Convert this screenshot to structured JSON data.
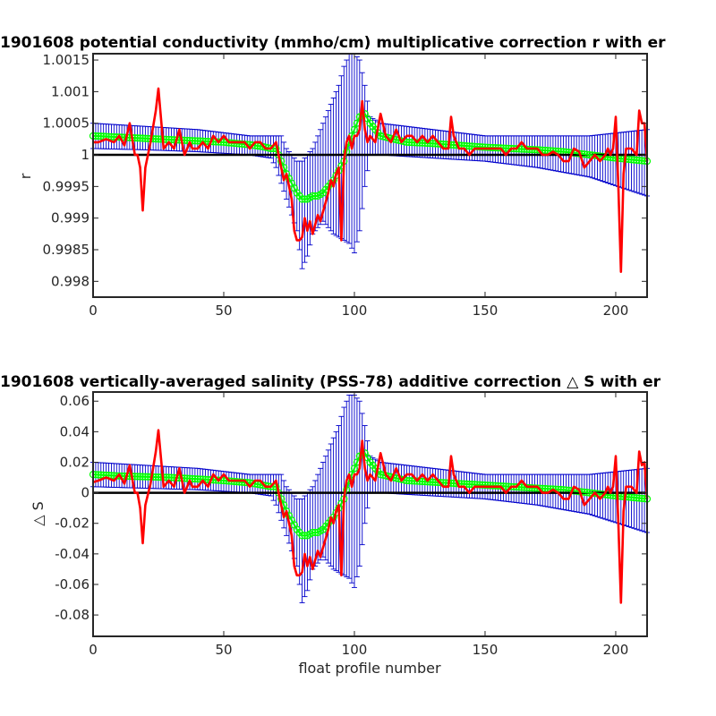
{
  "chart_data": [
    {
      "type": "line",
      "title": "1901608 potential conductivity (mmho/cm) multiplicative correction r with er",
      "xlabel": "",
      "ylabel": "r",
      "xlim": [
        0,
        212
      ],
      "ylim": [
        0.99775,
        1.0016
      ],
      "x_ticks": [
        0,
        50,
        100,
        150,
        200
      ],
      "x_tick_labels": [
        "0",
        "50",
        "100",
        "150",
        "200"
      ],
      "y_ticks": [
        0.998,
        0.9985,
        0.999,
        0.9995,
        1,
        1.0005,
        1.001,
        1.0015
      ],
      "y_tick_labels": [
        "0.998",
        "0.9985",
        "0.999",
        "0.9995",
        "1",
        "1.0005",
        "1.001",
        "1.0015"
      ],
      "reference_line": 1,
      "colors": {
        "raw": "#ff0000",
        "fit": "#00ff00",
        "errorbar": "#0000cc",
        "reference": "#000000"
      },
      "series": [
        {
          "role": "raw",
          "x": [
            0,
            2,
            5,
            8,
            10,
            12,
            14,
            16,
            17,
            18,
            19,
            20,
            22,
            24,
            25,
            27,
            29,
            31,
            33,
            35,
            36,
            37,
            38,
            40,
            42,
            44,
            46,
            48,
            50,
            52,
            54,
            56,
            58,
            60,
            62,
            64,
            66,
            68,
            70,
            71,
            72,
            73,
            74,
            75,
            76,
            77,
            78,
            79,
            80,
            81,
            82,
            83,
            84,
            85,
            86,
            87,
            88,
            89,
            90,
            91,
            92,
            93,
            94,
            95,
            96,
            97,
            98,
            99,
            100,
            101,
            102,
            103,
            104,
            105,
            106,
            108,
            110,
            112,
            114,
            116,
            118,
            120,
            122,
            124,
            126,
            128,
            130,
            132,
            134,
            136,
            137,
            138,
            140,
            142,
            144,
            146,
            148,
            150,
            152,
            154,
            156,
            158,
            160,
            162,
            164,
            166,
            168,
            170,
            172,
            174,
            176,
            178,
            180,
            182,
            184,
            186,
            188,
            190,
            192,
            194,
            196,
            197,
            198,
            199,
            200,
            201,
            202,
            203,
            204,
            206,
            208,
            209,
            210,
            211,
            212
          ],
          "y": [
            1.0002,
            1.0002,
            1.00025,
            1.0002,
            1.0003,
            1.00015,
            1.0005,
            1.0,
            1.0,
            0.9998,
            0.99912,
            0.9998,
            1.0002,
            1.0007,
            1.00105,
            1.0001,
            1.0002,
            1.0001,
            1.0004,
            1.0,
            1.0001,
            1.0002,
            1.0001,
            1.0001,
            1.0002,
            1.0001,
            1.0003,
            1.0002,
            1.0003,
            1.0002,
            1.0002,
            1.0002,
            1.0002,
            1.0001,
            1.0002,
            1.0002,
            1.0001,
            1.0001,
            1.0002,
            1.0,
            0.9998,
            0.9996,
            0.9997,
            0.9995,
            0.9993,
            0.9988,
            0.99865,
            0.99865,
            0.9987,
            0.999,
            0.9988,
            0.99895,
            0.99875,
            0.9989,
            0.99905,
            0.99895,
            0.9991,
            0.99925,
            0.9994,
            0.9996,
            0.9995,
            0.9997,
            0.9998,
            0.99865,
            0.9999,
            1.0002,
            1.0003,
            1.0001,
            1.0003,
            1.0003,
            1.0004,
            1.00085,
            1.0004,
            1.0002,
            1.0003,
            1.0002,
            1.00065,
            1.0003,
            1.0002,
            1.0004,
            1.0002,
            1.0003,
            1.0003,
            1.0002,
            1.0003,
            1.0002,
            1.0003,
            1.0002,
            1.0001,
            1.0001,
            1.0006,
            1.0003,
            1.0001,
            1.0001,
            1.0,
            1.0001,
            1.0001,
            1.0001,
            1.0001,
            1.0001,
            1.0001,
            1.0,
            1.0001,
            1.0001,
            1.0002,
            1.0001,
            1.0001,
            1.0001,
            1.0,
            1.0,
            1.00005,
            1.0,
            0.9999,
            0.9999,
            1.0001,
            1.00005,
            0.9998,
            0.9999,
            1.0,
            0.9999,
            1.0,
            1.0001,
            1.0,
            1.0001,
            1.0006,
            0.9995,
            0.99815,
            0.9997,
            1.0001,
            1.0001,
            1.0,
            1.0007,
            1.0005,
            1.0005,
            0.9999
          ]
        },
        {
          "role": "fit",
          "x": [
            0,
            10,
            20,
            30,
            40,
            50,
            60,
            65,
            68,
            70,
            72,
            74,
            76,
            78,
            80,
            82,
            84,
            86,
            88,
            90,
            92,
            94,
            96,
            98,
            100,
            102,
            104,
            106,
            110,
            120,
            130,
            140,
            150,
            160,
            170,
            180,
            190,
            200,
            212
          ],
          "y": [
            1.0003,
            1.00028,
            1.00026,
            1.00024,
            1.00022,
            1.0002,
            1.00016,
            1.00013,
            1.0001,
            1.0001,
            0.9999,
            0.9997,
            0.99955,
            0.9994,
            0.9993,
            0.9993,
            0.99935,
            0.99935,
            0.9994,
            0.9995,
            0.9996,
            0.99975,
            0.9999,
            1.0002,
            1.0004,
            1.0006,
            1.00065,
            1.0005,
            1.0003,
            1.0002,
            1.00018,
            1.00015,
            1.00012,
            1.0001,
            1.00008,
            1.00005,
            1.0,
            0.99995,
            0.9999
          ]
        },
        {
          "role": "error",
          "x": [
            0,
            20,
            40,
            60,
            68,
            70,
            72,
            74,
            76,
            78,
            80,
            82,
            84,
            86,
            88,
            90,
            92,
            94,
            96,
            98,
            100,
            102,
            104,
            106,
            110,
            130,
            150,
            170,
            190,
            212
          ],
          "lower": [
            1.0001,
            1.00008,
            1.00005,
            1.0,
            0.99995,
            0.9998,
            0.99955,
            0.9993,
            0.99905,
            0.9988,
            0.9982,
            0.9984,
            0.99875,
            0.99885,
            0.99895,
            0.99885,
            0.99875,
            0.9987,
            0.99865,
            0.9986,
            0.99845,
            0.9988,
            0.9995,
            1.0,
            1.0,
            0.99995,
            0.9999,
            0.9998,
            0.99965,
            0.99935
          ],
          "upper": [
            1.0005,
            1.00045,
            1.0004,
            1.0003,
            1.0003,
            1.0003,
            1.0003,
            1.0001,
            1.0,
            0.9999,
            0.9999,
            1.0,
            1.0001,
            1.0003,
            1.0005,
            1.0007,
            1.0009,
            1.0011,
            1.0014,
            1.0016,
            1.0016,
            1.0015,
            1.0011,
            1.0006,
            1.0005,
            1.0004,
            1.0003,
            1.0003,
            1.0003,
            1.0004
          ]
        }
      ]
    },
    {
      "type": "line",
      "title": "1901608 vertically-averaged salinity (PSS-78) additive correction △ S with er",
      "xlabel": "float profile number",
      "ylabel": "△ S",
      "xlim": [
        0,
        212
      ],
      "ylim": [
        -0.094,
        0.066
      ],
      "x_ticks": [
        0,
        50,
        100,
        150,
        200
      ],
      "x_tick_labels": [
        "0",
        "50",
        "100",
        "150",
        "200"
      ],
      "y_ticks": [
        -0.08,
        -0.06,
        -0.04,
        -0.02,
        0,
        0.02,
        0.04,
        0.06
      ],
      "y_tick_labels": [
        "-0.08",
        "-0.06",
        "-0.04",
        "-0.02",
        "0",
        "0.02",
        "0.04",
        "0.06"
      ],
      "reference_line": 0,
      "colors": {
        "raw": "#ff0000",
        "fit": "#00ff00",
        "errorbar": "#0000cc",
        "reference": "#000000"
      },
      "series": [
        {
          "role": "raw",
          "x": [
            0,
            2,
            5,
            8,
            10,
            12,
            14,
            16,
            17,
            18,
            19,
            20,
            22,
            24,
            25,
            27,
            29,
            31,
            33,
            35,
            36,
            37,
            38,
            40,
            42,
            44,
            46,
            48,
            50,
            52,
            54,
            56,
            58,
            60,
            62,
            64,
            66,
            68,
            70,
            71,
            72,
            73,
            74,
            75,
            76,
            77,
            78,
            79,
            80,
            81,
            82,
            83,
            84,
            85,
            86,
            87,
            88,
            89,
            90,
            91,
            92,
            93,
            94,
            95,
            96,
            97,
            98,
            99,
            100,
            101,
            102,
            103,
            104,
            105,
            106,
            108,
            110,
            112,
            114,
            116,
            118,
            120,
            122,
            124,
            126,
            128,
            130,
            132,
            134,
            136,
            137,
            138,
            140,
            142,
            144,
            146,
            148,
            150,
            152,
            154,
            156,
            158,
            160,
            162,
            164,
            166,
            168,
            170,
            172,
            174,
            176,
            178,
            180,
            182,
            184,
            186,
            188,
            190,
            192,
            194,
            196,
            197,
            198,
            199,
            200,
            201,
            202,
            203,
            204,
            206,
            208,
            209,
            210,
            211,
            212
          ],
          "y": [
            0.007,
            0.008,
            0.01,
            0.008,
            0.012,
            0.006,
            0.018,
            0.0,
            0.0,
            -0.01,
            -0.033,
            -0.008,
            0.006,
            0.027,
            0.041,
            0.004,
            0.008,
            0.004,
            0.016,
            0.0,
            0.004,
            0.008,
            0.004,
            0.004,
            0.008,
            0.004,
            0.012,
            0.008,
            0.012,
            0.008,
            0.008,
            0.008,
            0.008,
            0.004,
            0.008,
            0.008,
            0.004,
            0.004,
            0.008,
            0.0,
            -0.008,
            -0.016,
            -0.012,
            -0.02,
            -0.028,
            -0.048,
            -0.054,
            -0.054,
            -0.052,
            -0.04,
            -0.048,
            -0.042,
            -0.05,
            -0.044,
            -0.038,
            -0.042,
            -0.036,
            -0.03,
            -0.024,
            -0.016,
            -0.02,
            -0.012,
            -0.008,
            -0.054,
            -0.004,
            0.008,
            0.012,
            0.004,
            0.012,
            0.012,
            0.016,
            0.034,
            0.016,
            0.008,
            0.012,
            0.008,
            0.026,
            0.012,
            0.008,
            0.016,
            0.008,
            0.012,
            0.012,
            0.008,
            0.012,
            0.008,
            0.012,
            0.008,
            0.004,
            0.004,
            0.024,
            0.012,
            0.004,
            0.004,
            0.0,
            0.004,
            0.004,
            0.004,
            0.004,
            0.004,
            0.004,
            0.0,
            0.004,
            0.004,
            0.008,
            0.004,
            0.004,
            0.004,
            0.0,
            0.0,
            0.002,
            0.0,
            -0.004,
            -0.004,
            0.004,
            0.002,
            -0.008,
            -0.004,
            0.0,
            -0.004,
            0.0,
            0.004,
            0.0,
            0.004,
            0.024,
            -0.02,
            -0.072,
            -0.012,
            0.004,
            0.004,
            0.0,
            0.027,
            0.018,
            0.02,
            -0.004
          ]
        },
        {
          "role": "fit",
          "x": [
            0,
            10,
            20,
            30,
            40,
            50,
            60,
            65,
            68,
            70,
            72,
            74,
            76,
            78,
            80,
            82,
            84,
            86,
            88,
            90,
            92,
            94,
            96,
            98,
            100,
            102,
            104,
            106,
            110,
            120,
            130,
            140,
            150,
            160,
            170,
            180,
            190,
            200,
            212
          ],
          "y": [
            0.012,
            0.011,
            0.0105,
            0.01,
            0.009,
            0.008,
            0.0065,
            0.005,
            0.004,
            0.004,
            -0.004,
            -0.012,
            -0.018,
            -0.024,
            -0.028,
            -0.028,
            -0.026,
            -0.026,
            -0.024,
            -0.02,
            -0.016,
            -0.01,
            -0.004,
            0.008,
            0.016,
            0.024,
            0.026,
            0.02,
            0.012,
            0.008,
            0.007,
            0.006,
            0.005,
            0.004,
            0.003,
            0.002,
            0.0,
            -0.002,
            -0.004
          ]
        },
        {
          "role": "error",
          "x": [
            0,
            20,
            40,
            60,
            68,
            70,
            72,
            74,
            76,
            78,
            80,
            82,
            84,
            86,
            88,
            90,
            92,
            94,
            96,
            98,
            100,
            102,
            104,
            106,
            110,
            130,
            150,
            170,
            190,
            212
          ],
          "lower": [
            0.004,
            0.003,
            0.002,
            0.0,
            -0.002,
            -0.008,
            -0.018,
            -0.028,
            -0.038,
            -0.048,
            -0.072,
            -0.064,
            -0.05,
            -0.046,
            -0.042,
            -0.046,
            -0.05,
            -0.052,
            -0.054,
            -0.056,
            -0.062,
            -0.048,
            -0.02,
            0.0,
            0.0,
            -0.002,
            -0.004,
            -0.008,
            -0.014,
            -0.026
          ],
          "upper": [
            0.02,
            0.018,
            0.016,
            0.012,
            0.012,
            0.012,
            0.012,
            0.004,
            0.0,
            -0.004,
            -0.004,
            0.0,
            0.004,
            0.012,
            0.02,
            0.028,
            0.036,
            0.044,
            0.056,
            0.064,
            0.064,
            0.06,
            0.044,
            0.024,
            0.02,
            0.016,
            0.012,
            0.012,
            0.012,
            0.016
          ]
        }
      ]
    }
  ]
}
